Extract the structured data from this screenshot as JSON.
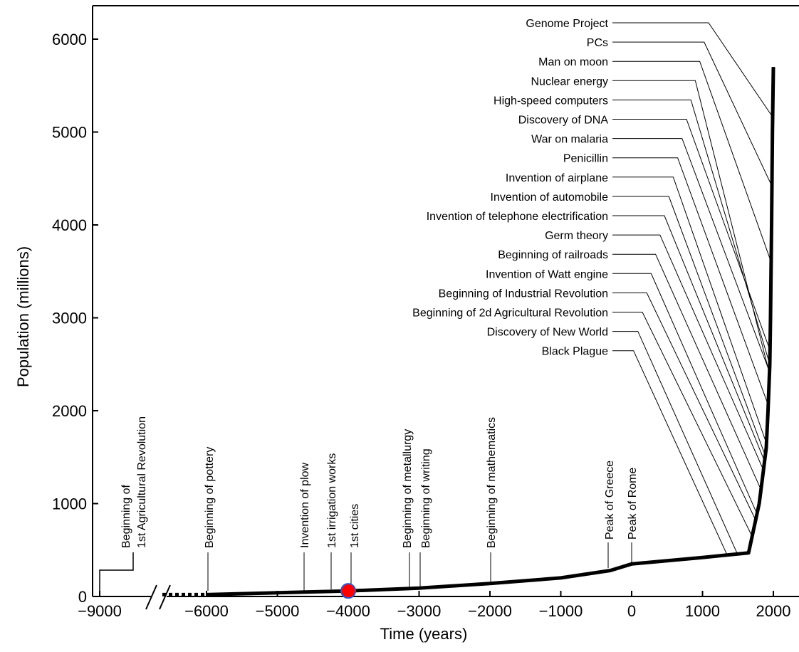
{
  "chart_data": {
    "type": "line",
    "xlabel": "Time (years)",
    "ylabel": "Population (millions)",
    "x_ticks": [
      -9000,
      -6000,
      -5000,
      -4000,
      -3000,
      -2000,
      -1000,
      0,
      1000,
      2000
    ],
    "x_tick_labels": [
      "−9000",
      "−6000",
      "−5000",
      "−4000",
      "−3000",
      "−2000",
      "−1000",
      "0",
      "1000",
      "2000"
    ],
    "y_ticks": [
      0,
      1000,
      2000,
      3000,
      4000,
      5000,
      6000
    ],
    "y_tick_labels": [
      "0",
      "1000",
      "2000",
      "3000",
      "4000",
      "5000",
      "6000"
    ],
    "xlim": [
      -9000,
      2350
    ],
    "ylim": [
      0,
      6350
    ],
    "axis_break": {
      "after": -9000,
      "resume": -6000
    },
    "series": [
      {
        "color": "#000000",
        "points": [
          [
            -6000,
            20
          ],
          [
            -5000,
            40
          ],
          [
            -4000,
            60
          ],
          [
            -3000,
            90
          ],
          [
            -2000,
            140
          ],
          [
            -1000,
            200
          ],
          [
            -300,
            280
          ],
          [
            0,
            350
          ],
          [
            1000,
            420
          ],
          [
            1650,
            470
          ],
          [
            1800,
            1000
          ],
          [
            1850,
            1300
          ],
          [
            1900,
            1600
          ],
          [
            1925,
            2000
          ],
          [
            1950,
            2500
          ],
          [
            1960,
            3000
          ],
          [
            1975,
            4000
          ],
          [
            1987,
            5000
          ],
          [
            2000,
            5700
          ]
        ]
      }
    ],
    "dashed_segment": [
      [
        -6700,
        20
      ],
      [
        -6000,
        20
      ]
    ],
    "marker": {
      "x": -4000,
      "y": 60,
      "fill": "#ff0000",
      "stroke": "#3355cc"
    },
    "bottom_events": [
      {
        "label": "Beginning of",
        "label2": "1st Agricultural Revolution",
        "x": -9000
      },
      {
        "label": "Beginning of pottery",
        "x": -6000
      },
      {
        "label": "Invention of plow",
        "x": -4700
      },
      {
        "label": "1st irrigation works",
        "x": -4300
      },
      {
        "label": "1st cities",
        "x": -4000
      },
      {
        "label": "Beginning of metallurgy",
        "x": -3150
      },
      {
        "label": "Beginning of writing",
        "x": -3000
      },
      {
        "label": "Beginning of mathematics",
        "x": -2000
      },
      {
        "label": "Peak of Greece",
        "x": -300
      },
      {
        "label": "Peak of Rome",
        "x": 0
      }
    ],
    "top_events": [
      {
        "label": "Genome Project",
        "x": 1990
      },
      {
        "label": "PCs",
        "x": 1980
      },
      {
        "label": "Man on moon",
        "x": 1969
      },
      {
        "label": "Nuclear energy",
        "x": 1945
      },
      {
        "label": "High-speed computers",
        "x": 1950
      },
      {
        "label": "Discovery of DNA",
        "x": 1953
      },
      {
        "label": "War on malaria",
        "x": 1946
      },
      {
        "label": "Penicillin",
        "x": 1928
      },
      {
        "label": "Invention of airplane",
        "x": 1903
      },
      {
        "label": "Invention of automobile",
        "x": 1886
      },
      {
        "label": "Invention of telephone electrification",
        "x": 1876
      },
      {
        "label": "Germ theory",
        "x": 1860
      },
      {
        "label": "Beginning of railroads",
        "x": 1825
      },
      {
        "label": "Invention of Watt engine",
        "x": 1769
      },
      {
        "label": "Beginning of Industrial Revolution",
        "x": 1750
      },
      {
        "label": "Beginning of 2d Agricultural Revolution",
        "x": 1700
      },
      {
        "label": "Discovery of New World",
        "x": 1492
      },
      {
        "label": "Black Plague",
        "x": 1348
      }
    ]
  }
}
